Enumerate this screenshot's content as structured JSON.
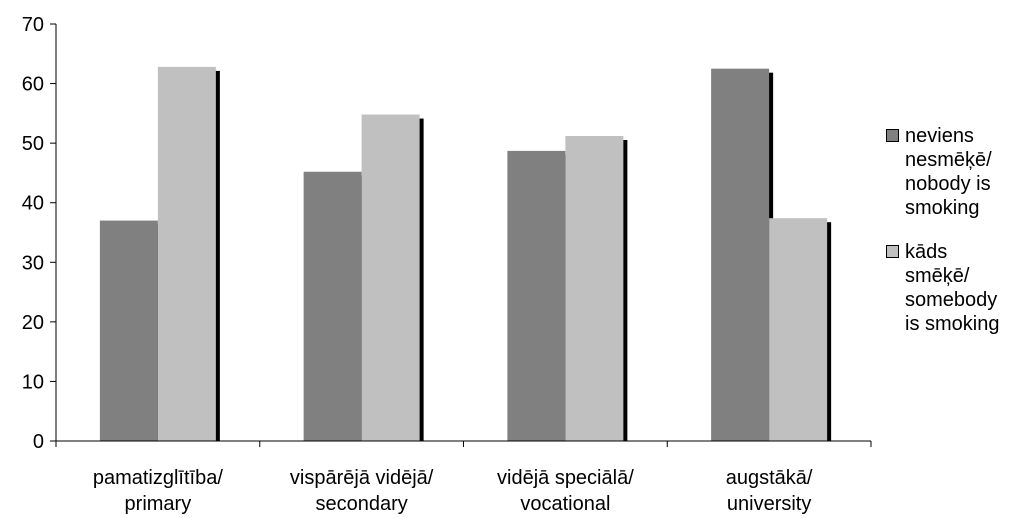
{
  "chart_data": {
    "type": "bar",
    "categories": [
      "pamatizglītība/\nprimary",
      "vispārējā vidējā/\nsecondary",
      "vidējā speciālā/\nvocational",
      "augstākā/\nuniversity"
    ],
    "series": [
      {
        "name": "neviens\nnesmēķē/\nnobody is\nsmoking",
        "color": "#808080",
        "values": [
          37,
          45.2,
          48.7,
          62.5
        ]
      },
      {
        "name": "kāds\nsmēķē/\nsomebody\nis smoking",
        "color": "#c0c0c0",
        "values": [
          62.8,
          54.8,
          51.2,
          37.4
        ]
      }
    ],
    "ylim": [
      0,
      70
    ],
    "yticks": [
      0,
      10,
      20,
      30,
      40,
      50,
      60,
      70
    ],
    "grid": false,
    "legend_position": "right",
    "shadow_color": "#000000"
  }
}
